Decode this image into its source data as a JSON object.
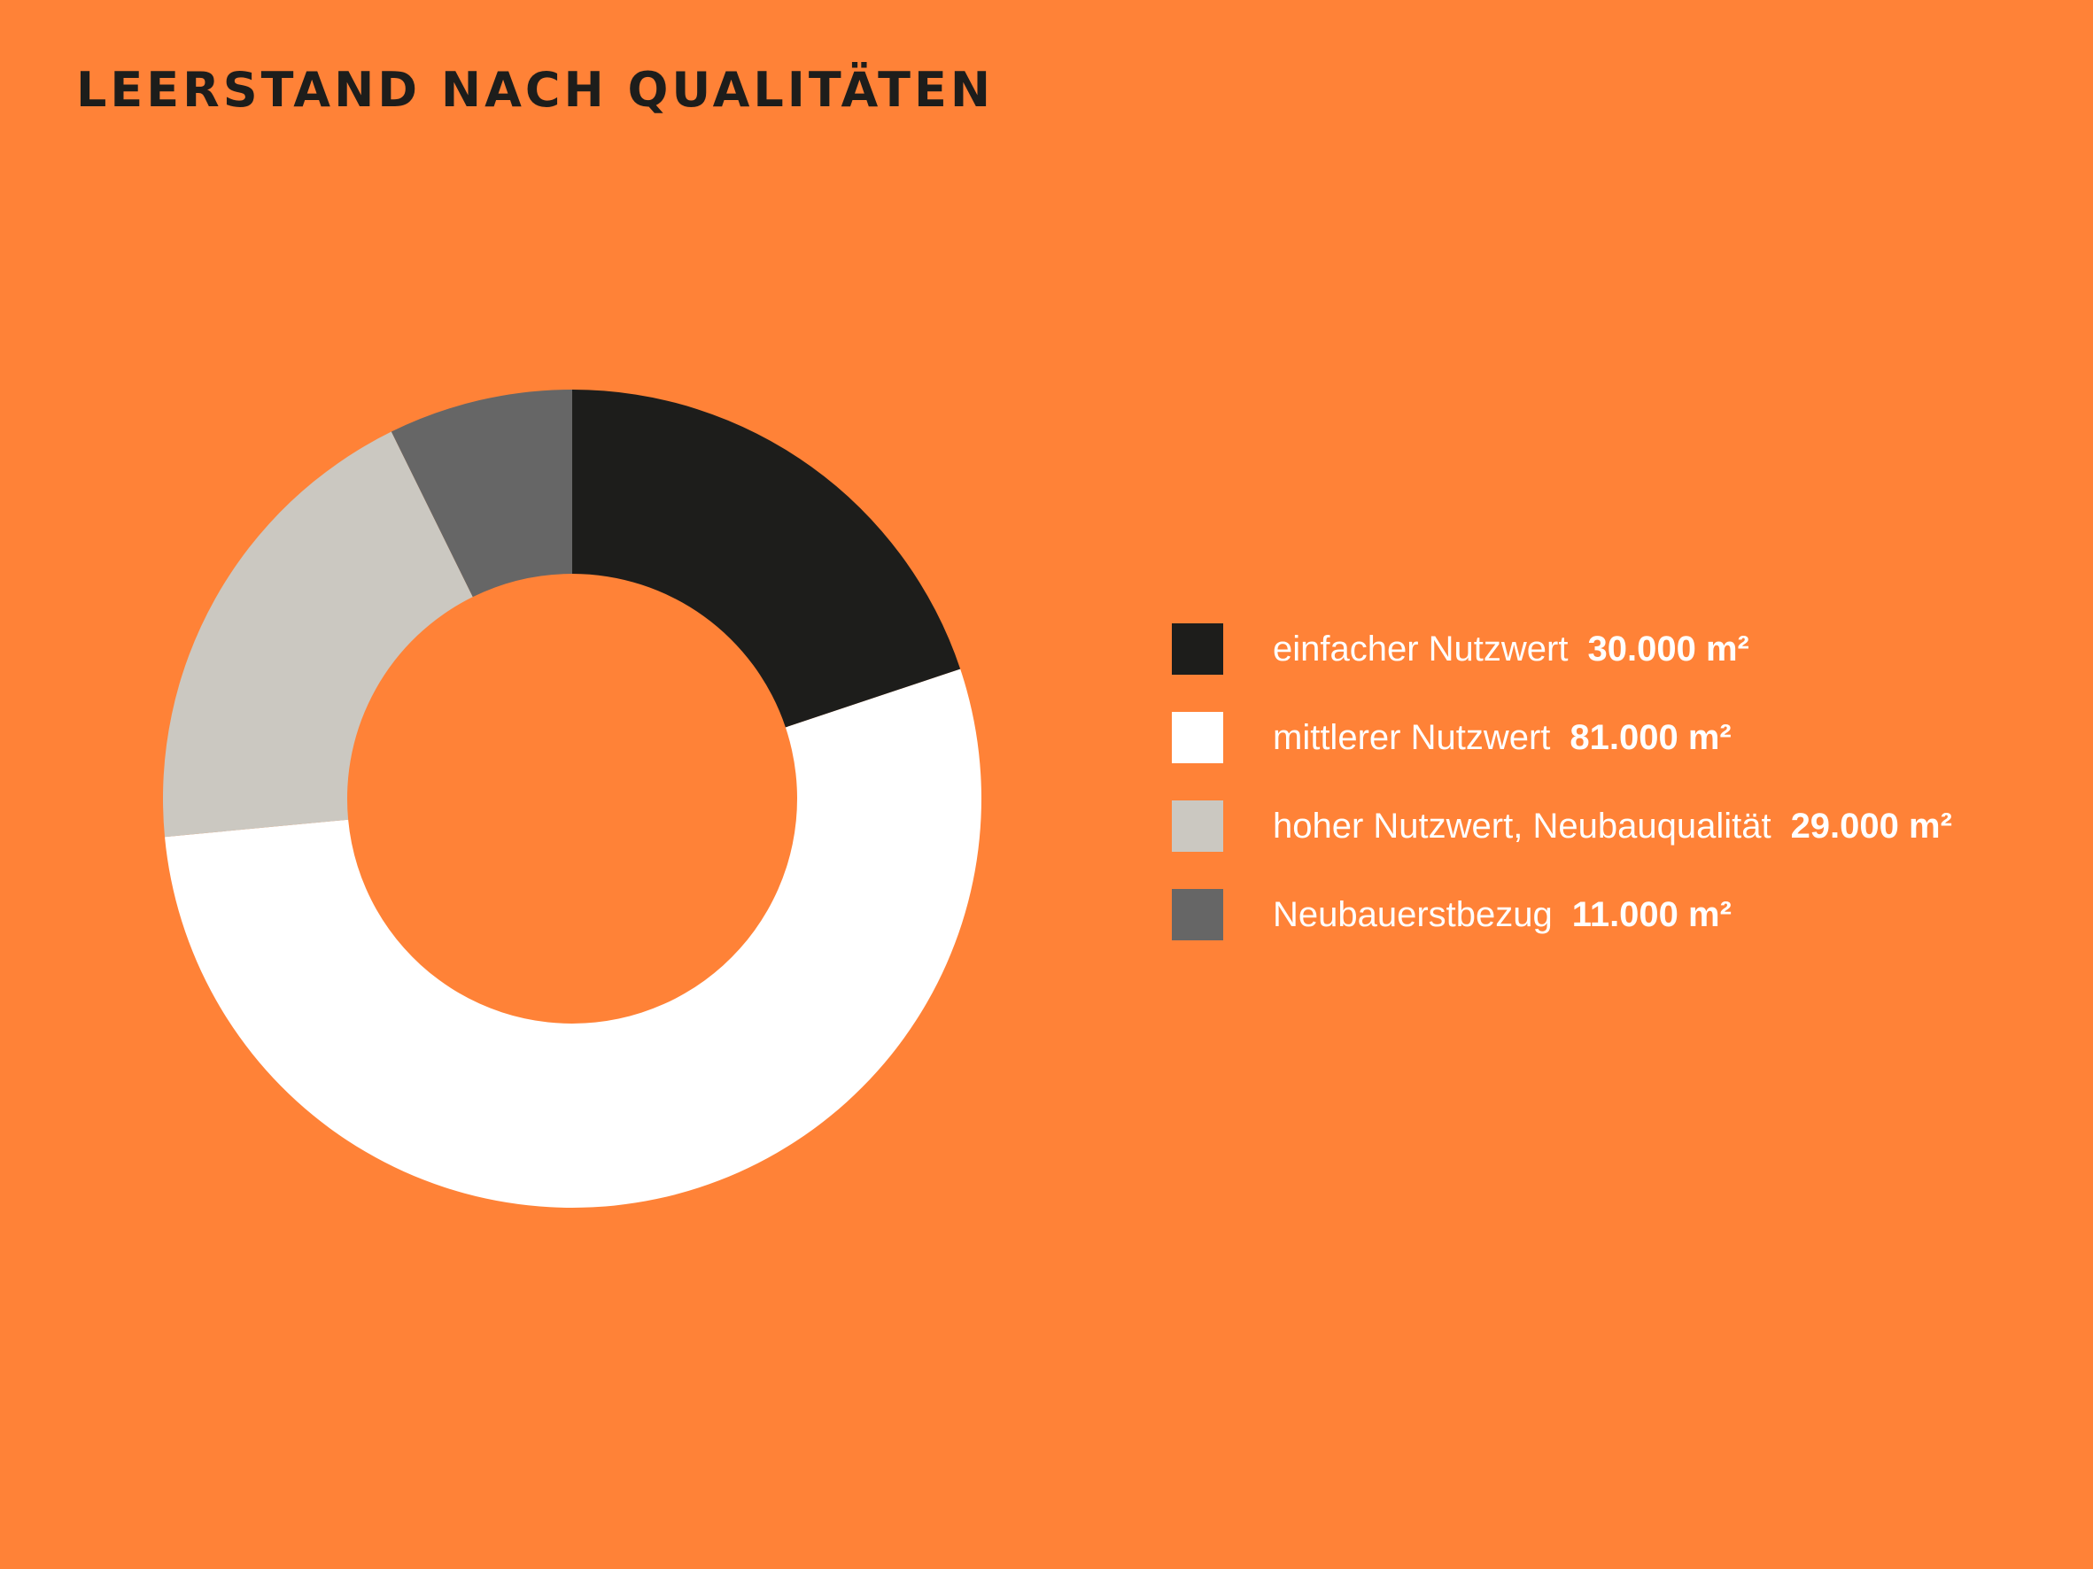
{
  "chart_data": {
    "type": "pie",
    "title": "LEERSTAND NACH QUALITÄTEN",
    "donut": true,
    "legend_position": "right",
    "categories": [
      "einfacher Nutzwert",
      "mittlerer Nutzwert",
      "hoher Nutzwert, Neubauqualität",
      "Neubauerstbezug"
    ],
    "values": [
      30000,
      81000,
      29000,
      11000
    ],
    "value_labels": [
      "30.000 m²",
      "81.000 m²",
      "29.000 m²",
      "11.000 m²"
    ],
    "colors": [
      "#1d1d1b",
      "#ffffff",
      "#cbc8c1",
      "#666666"
    ],
    "background": "#FF8237"
  }
}
